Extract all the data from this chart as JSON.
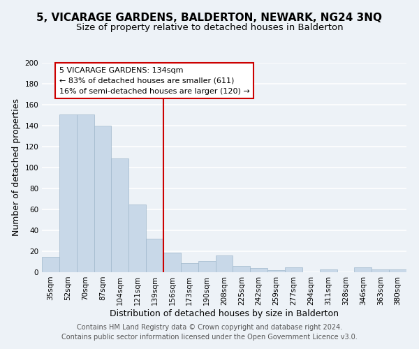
{
  "title": "5, VICARAGE GARDENS, BALDERTON, NEWARK, NG24 3NQ",
  "subtitle": "Size of property relative to detached houses in Balderton",
  "xlabel": "Distribution of detached houses by size in Balderton",
  "ylabel": "Number of detached properties",
  "bar_color": "#c8d8e8",
  "bar_edge_color": "#a0b8cc",
  "categories": [
    "35sqm",
    "52sqm",
    "70sqm",
    "87sqm",
    "104sqm",
    "121sqm",
    "139sqm",
    "156sqm",
    "173sqm",
    "190sqm",
    "208sqm",
    "225sqm",
    "242sqm",
    "259sqm",
    "277sqm",
    "294sqm",
    "311sqm",
    "328sqm",
    "346sqm",
    "363sqm",
    "380sqm"
  ],
  "values": [
    15,
    151,
    151,
    140,
    109,
    65,
    32,
    19,
    9,
    11,
    16,
    6,
    4,
    2,
    5,
    0,
    3,
    0,
    5,
    3,
    3
  ],
  "ylim": [
    0,
    200
  ],
  "yticks": [
    0,
    20,
    40,
    60,
    80,
    100,
    120,
    140,
    160,
    180,
    200
  ],
  "vline_x": 6.5,
  "vline_color": "#cc0000",
  "annotation_title": "5 VICARAGE GARDENS: 134sqm",
  "annotation_line1": "← 83% of detached houses are smaller (611)",
  "annotation_line2": "16% of semi-detached houses are larger (120) →",
  "annotation_box_color": "#ffffff",
  "annotation_box_edge_color": "#cc0000",
  "footer1": "Contains HM Land Registry data © Crown copyright and database right 2024.",
  "footer2": "Contains public sector information licensed under the Open Government Licence v3.0.",
  "background_color": "#edf2f7",
  "grid_color": "#ffffff",
  "title_fontsize": 11,
  "subtitle_fontsize": 9.5,
  "axis_label_fontsize": 9,
  "tick_fontsize": 7.5,
  "annotation_fontsize": 8,
  "footer_fontsize": 7
}
